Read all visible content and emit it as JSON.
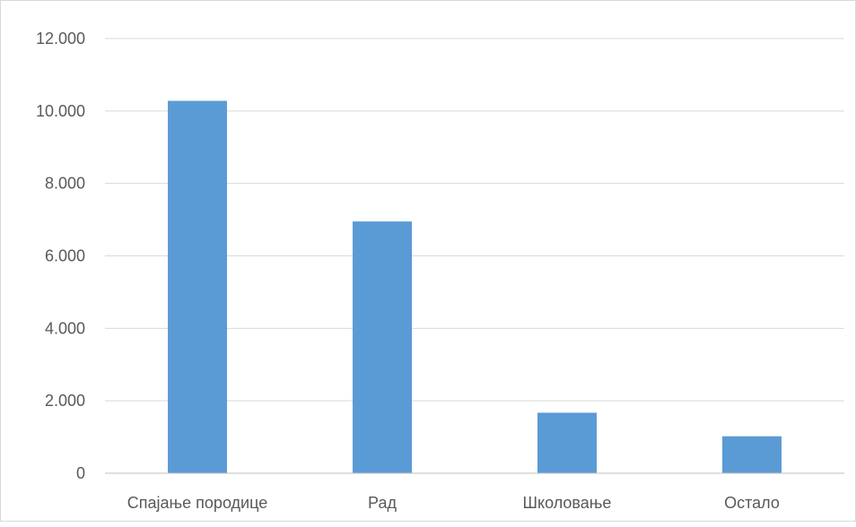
{
  "chart_data": {
    "type": "bar",
    "title": "",
    "xlabel": "",
    "ylabel": "",
    "categories": [
      "Спајање породице",
      "Рад",
      "Школовање",
      "Остало"
    ],
    "values": [
      10280,
      6950,
      1670,
      1020
    ],
    "ylim": [
      0,
      12000
    ],
    "y_ticks": [
      {
        "value": 0,
        "label": "0"
      },
      {
        "value": 2000,
        "label": "2.000"
      },
      {
        "value": 4000,
        "label": "4.000"
      },
      {
        "value": 6000,
        "label": "6.000"
      },
      {
        "value": 8000,
        "label": "8.000"
      },
      {
        "value": 10000,
        "label": "10.000"
      },
      {
        "value": 12000,
        "label": "12.000"
      }
    ],
    "grid": true,
    "legend": "none",
    "colors": {
      "bar": "#5b9bd5",
      "grid": "#d9d9d9",
      "axis": "#bfbfbf",
      "text": "#595959"
    }
  }
}
